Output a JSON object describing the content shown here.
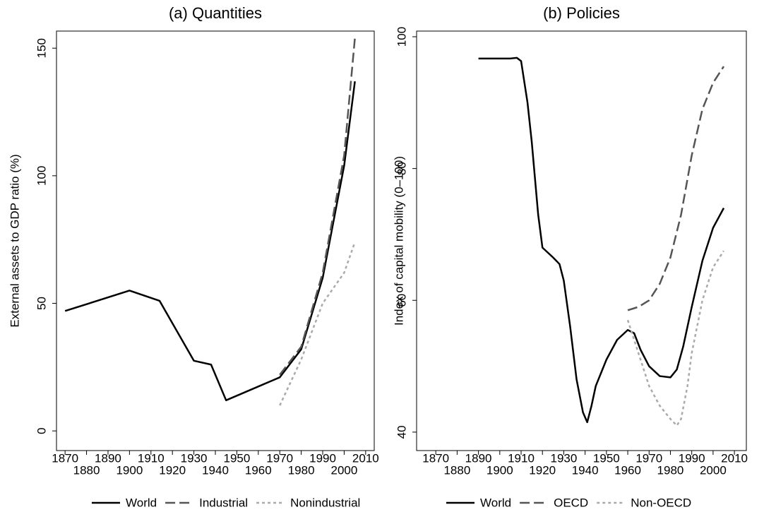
{
  "chart_data": [
    {
      "type": "line",
      "title": "(a) Quantities",
      "y_label": "External assets to GDP ratio (%)",
      "xlim": [
        1866,
        2014
      ],
      "xticks": [
        1870,
        1880,
        1890,
        1900,
        1910,
        1920,
        1930,
        1940,
        1950,
        1960,
        1970,
        1980,
        1990,
        2000,
        2010
      ],
      "ylim": [
        -7.7,
        156.7
      ],
      "yticks": [
        0,
        50,
        100,
        150
      ],
      "series": [
        {
          "name": "World",
          "color": "#000000",
          "dash": "solid",
          "x": [
            1870,
            1900,
            1914,
            1930,
            1938,
            1945,
            1970,
            1980,
            1990,
            2000,
            2005
          ],
          "values": [
            47,
            55,
            51,
            27.5,
            26,
            12,
            21,
            32,
            60,
            104,
            137
          ]
        },
        {
          "name": "Industrial",
          "color": "#555555",
          "dash": "long",
          "x": [
            1970,
            1980,
            1990,
            2000,
            2005
          ],
          "values": [
            22,
            33,
            62,
            108,
            154
          ]
        },
        {
          "name": "Nonindustrial",
          "color": "#aaaaaa",
          "dash": "short",
          "x": [
            1970,
            1980,
            1990,
            2000,
            2005
          ],
          "values": [
            10,
            28,
            50,
            62,
            74
          ]
        }
      ]
    },
    {
      "type": "line",
      "title": "(b) Policies",
      "y_label": "Index of capital mobility (0–100)",
      "xlim": [
        1861,
        2015.6
      ],
      "xticks": [
        1870,
        1880,
        1890,
        1900,
        1910,
        1920,
        1930,
        1940,
        1950,
        1960,
        1970,
        1980,
        1990,
        2000,
        2010
      ],
      "ylim": [
        37.2,
        100.86
      ],
      "yticks": [
        40,
        60,
        80,
        100
      ],
      "series": [
        {
          "name": "World",
          "color": "#000000",
          "dash": "solid",
          "x": [
            1890,
            1895,
            1900,
            1905,
            1908,
            1910,
            1913,
            1915,
            1918,
            1920,
            1925,
            1928,
            1930,
            1933,
            1936,
            1939,
            1941,
            1943,
            1945,
            1950,
            1955,
            1960,
            1963,
            1966,
            1970,
            1975,
            1980,
            1983,
            1986,
            1990,
            1995,
            2000,
            2005
          ],
          "values": [
            96.7,
            96.7,
            96.7,
            96.7,
            96.8,
            96.3,
            90,
            84,
            73,
            68,
            66.5,
            65.5,
            63,
            56,
            48,
            43,
            41.5,
            44,
            47,
            51,
            54,
            55.5,
            55,
            52.5,
            50,
            48.5,
            48.3,
            49.5,
            53,
            59,
            66,
            71,
            74
          ]
        },
        {
          "name": "OECD",
          "color": "#555555",
          "dash": "long",
          "x": [
            1960,
            1965,
            1970,
            1975,
            1980,
            1985,
            1990,
            1995,
            2000,
            2005
          ],
          "values": [
            58.5,
            59,
            60,
            62.5,
            66.5,
            73,
            82,
            89,
            93,
            95.5
          ]
        },
        {
          "name": "Non-OECD",
          "color": "#aaaaaa",
          "dash": "short",
          "x": [
            1960,
            1965,
            1970,
            1975,
            1980,
            1983,
            1985,
            1988,
            1990,
            1995,
            2000,
            2005
          ],
          "values": [
            57,
            52,
            47,
            44,
            42,
            41,
            42,
            47,
            52,
            60,
            65,
            67.5
          ]
        }
      ]
    }
  ]
}
